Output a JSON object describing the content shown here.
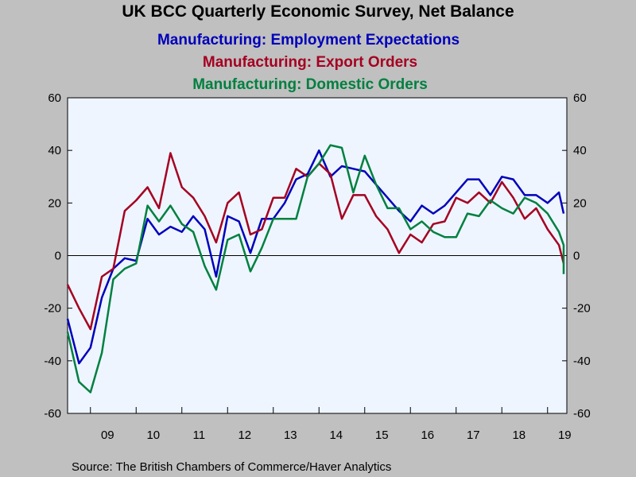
{
  "chart_data": {
    "type": "line",
    "title": "UK BCC Quarterly Economic Survey, Net Balance",
    "source": "Source:  The British Chambers of Commerce/Haver Analytics",
    "x_labels": [
      "09",
      "10",
      "11",
      "12",
      "13",
      "14",
      "15",
      "16",
      "17",
      "18",
      "19"
    ],
    "y_ticks_left": [
      "60",
      "40",
      "20",
      "0",
      "-20",
      "-40",
      "-60"
    ],
    "y_ticks_right": [
      "60",
      "40",
      "20",
      "0",
      "-20",
      "-40",
      "-60"
    ],
    "ylim": [
      -60,
      60
    ],
    "grid": false,
    "zero_line": true,
    "x_start": "2008 Q3",
    "series": [
      {
        "name": "Manufacturing:  Employment  Expectations",
        "color": "#0000bb",
        "values": [
          -24,
          -41,
          -35,
          -16,
          -5,
          -1,
          -2,
          14,
          8,
          11,
          9,
          15,
          10,
          -8,
          15,
          13,
          1,
          14,
          14,
          20,
          29,
          31,
          40,
          30,
          34,
          33,
          32,
          27,
          22,
          17,
          13,
          19,
          16,
          19,
          24,
          29,
          29,
          23,
          30,
          29,
          23,
          23,
          20,
          24,
          16
        ]
      },
      {
        "name": "Manufacturing: Export Orders",
        "color": "#a50021",
        "values": [
          -11,
          -20,
          -28,
          -8,
          -5,
          17,
          21,
          26,
          18,
          39,
          26,
          22,
          15,
          5,
          20,
          24,
          8,
          10,
          22,
          22,
          33,
          30,
          35,
          31,
          14,
          23,
          23,
          15,
          10,
          1,
          8,
          5,
          12,
          13,
          22,
          20,
          24,
          20,
          28,
          22,
          14,
          18,
          10,
          4,
          -3
        ]
      },
      {
        "name": "Manufacturing: Domestic Orders",
        "color": "#008040",
        "values": [
          -29,
          -48,
          -52,
          -37,
          -9,
          -5,
          -3,
          19,
          13,
          19,
          12,
          9,
          -4,
          -13,
          6,
          8,
          -6,
          3,
          14,
          14,
          14,
          30,
          35,
          42,
          41,
          24,
          38,
          27,
          18,
          18,
          10,
          13,
          9,
          7,
          7,
          16,
          15,
          21,
          18,
          16,
          22,
          20,
          16,
          9,
          4,
          -7
        ]
      }
    ]
  }
}
